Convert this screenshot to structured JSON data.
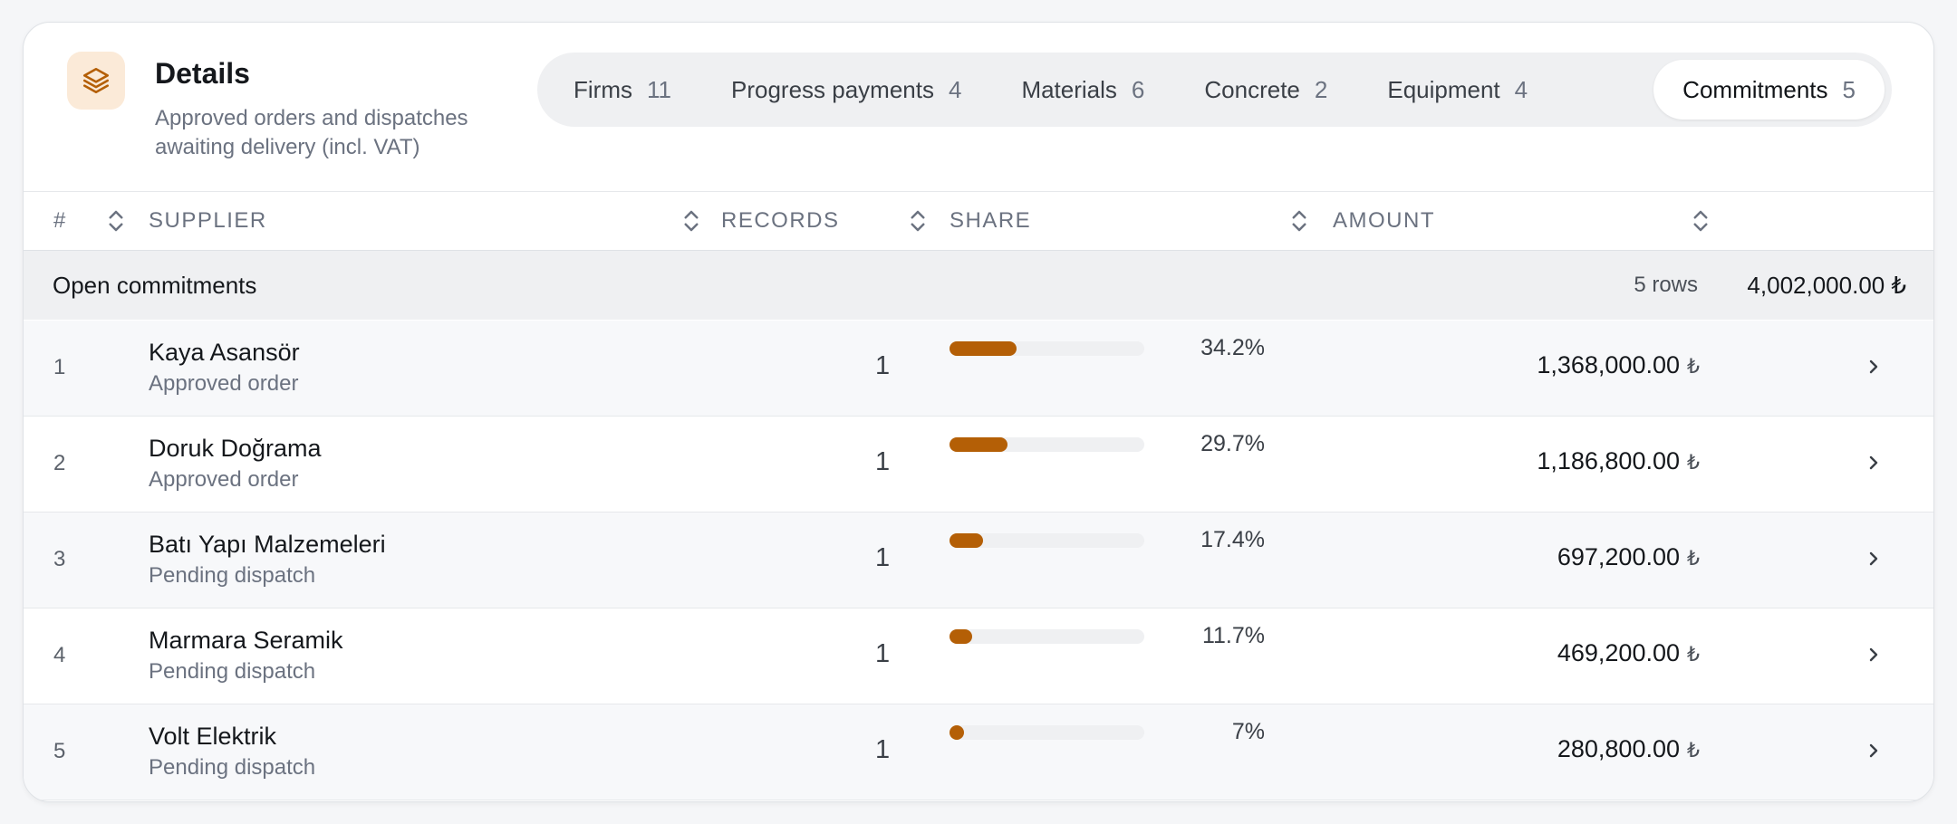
{
  "header": {
    "title": "Details",
    "subtitle": "Approved orders and dispatches awaiting delivery (incl. VAT)",
    "icon": "layers-icon"
  },
  "tabs": [
    {
      "label": "Firms",
      "count": "11"
    },
    {
      "label": "Progress payments",
      "count": "4"
    },
    {
      "label": "Materials",
      "count": "6"
    },
    {
      "label": "Concrete",
      "count": "2"
    },
    {
      "label": "Equipment",
      "count": "4"
    },
    {
      "label": "Commitments",
      "count": "5",
      "active": true
    }
  ],
  "columns": {
    "index": "#",
    "supplier": "SUPPLIER",
    "records": "RECORDS",
    "share": "SHARE",
    "amount": "AMOUNT"
  },
  "group": {
    "label": "Open commitments",
    "rows": "5 rows",
    "total": "4,002,000.00 ₺"
  },
  "rows": [
    {
      "index": "1",
      "name": "Kaya Asansör",
      "status": "Approved order",
      "records": "1",
      "share": 34.2,
      "share_label": "34.2%",
      "amount": "1,368,000.00",
      "currency": "₺"
    },
    {
      "index": "2",
      "name": "Doruk Doğrama",
      "status": "Approved order",
      "records": "1",
      "share": 29.7,
      "share_label": "29.7%",
      "amount": "1,186,800.00",
      "currency": "₺"
    },
    {
      "index": "3",
      "name": "Batı Yapı Malzemeleri",
      "status": "Pending dispatch",
      "records": "1",
      "share": 17.4,
      "share_label": "17.4%",
      "amount": "697,200.00",
      "currency": "₺"
    },
    {
      "index": "4",
      "name": "Marmara Seramik",
      "status": "Pending dispatch",
      "records": "1",
      "share": 11.7,
      "share_label": "11.7%",
      "amount": "469,200.00",
      "currency": "₺"
    },
    {
      "index": "5",
      "name": "Volt Elektrik",
      "status": "Pending dispatch",
      "records": "1",
      "share": 7,
      "share_label": "7%",
      "amount": "280,800.00",
      "currency": "₺"
    }
  ],
  "colors": {
    "accent": "#b45f06",
    "icon_bg": "#fbead8"
  }
}
